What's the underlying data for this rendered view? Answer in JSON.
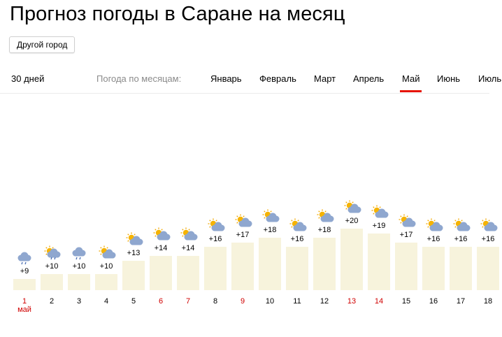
{
  "title": "Прогноз погоды в Саране на месяц",
  "city_button": "Другой город",
  "nav": {
    "days30": "30 дней",
    "label": "Погода по месяцам:",
    "months": [
      "Январь",
      "Февраль",
      "Март",
      "Апрель",
      "Май",
      "Июнь",
      "Июль"
    ],
    "active": "Май"
  },
  "colors": {
    "bar": "#f7f3dc",
    "holiday": "#d00000",
    "active_underline": "#e61400"
  },
  "chart_data": {
    "type": "bar",
    "month_label": "май",
    "days": [
      {
        "day": "1",
        "temp": "+9",
        "value": 9,
        "icon": "cloud-rain-icon",
        "red": true
      },
      {
        "day": "2",
        "temp": "+10",
        "value": 10,
        "icon": "partly-cloudy-rain-icon",
        "red": false
      },
      {
        "day": "3",
        "temp": "+10",
        "value": 10,
        "icon": "cloud-rain-icon",
        "red": false
      },
      {
        "day": "4",
        "temp": "+10",
        "value": 10,
        "icon": "partly-cloudy-icon",
        "red": false
      },
      {
        "day": "5",
        "temp": "+13",
        "value": 13,
        "icon": "partly-cloudy-icon",
        "red": false
      },
      {
        "day": "6",
        "temp": "+14",
        "value": 14,
        "icon": "partly-cloudy-icon",
        "red": true
      },
      {
        "day": "7",
        "temp": "+14",
        "value": 14,
        "icon": "partly-cloudy-icon",
        "red": true
      },
      {
        "day": "8",
        "temp": "+16",
        "value": 16,
        "icon": "partly-cloudy-icon",
        "red": false
      },
      {
        "day": "9",
        "temp": "+17",
        "value": 17,
        "icon": "partly-cloudy-icon",
        "red": true
      },
      {
        "day": "10",
        "temp": "+18",
        "value": 18,
        "icon": "partly-cloudy-icon",
        "red": false
      },
      {
        "day": "11",
        "temp": "+16",
        "value": 16,
        "icon": "partly-cloudy-icon",
        "red": false
      },
      {
        "day": "12",
        "temp": "+18",
        "value": 18,
        "icon": "partly-cloudy-icon",
        "red": false
      },
      {
        "day": "13",
        "temp": "+20",
        "value": 20,
        "icon": "partly-cloudy-icon",
        "red": true
      },
      {
        "day": "14",
        "temp": "+19",
        "value": 19,
        "icon": "partly-cloudy-icon",
        "red": true
      },
      {
        "day": "15",
        "temp": "+17",
        "value": 17,
        "icon": "partly-cloudy-icon",
        "red": false
      },
      {
        "day": "16",
        "temp": "+16",
        "value": 16,
        "icon": "partly-cloudy-icon",
        "red": false
      },
      {
        "day": "17",
        "temp": "+16",
        "value": 16,
        "icon": "partly-cloudy-icon",
        "red": false
      },
      {
        "day": "18",
        "temp": "+16",
        "value": 16,
        "icon": "partly-cloudy-icon",
        "red": false
      }
    ]
  }
}
